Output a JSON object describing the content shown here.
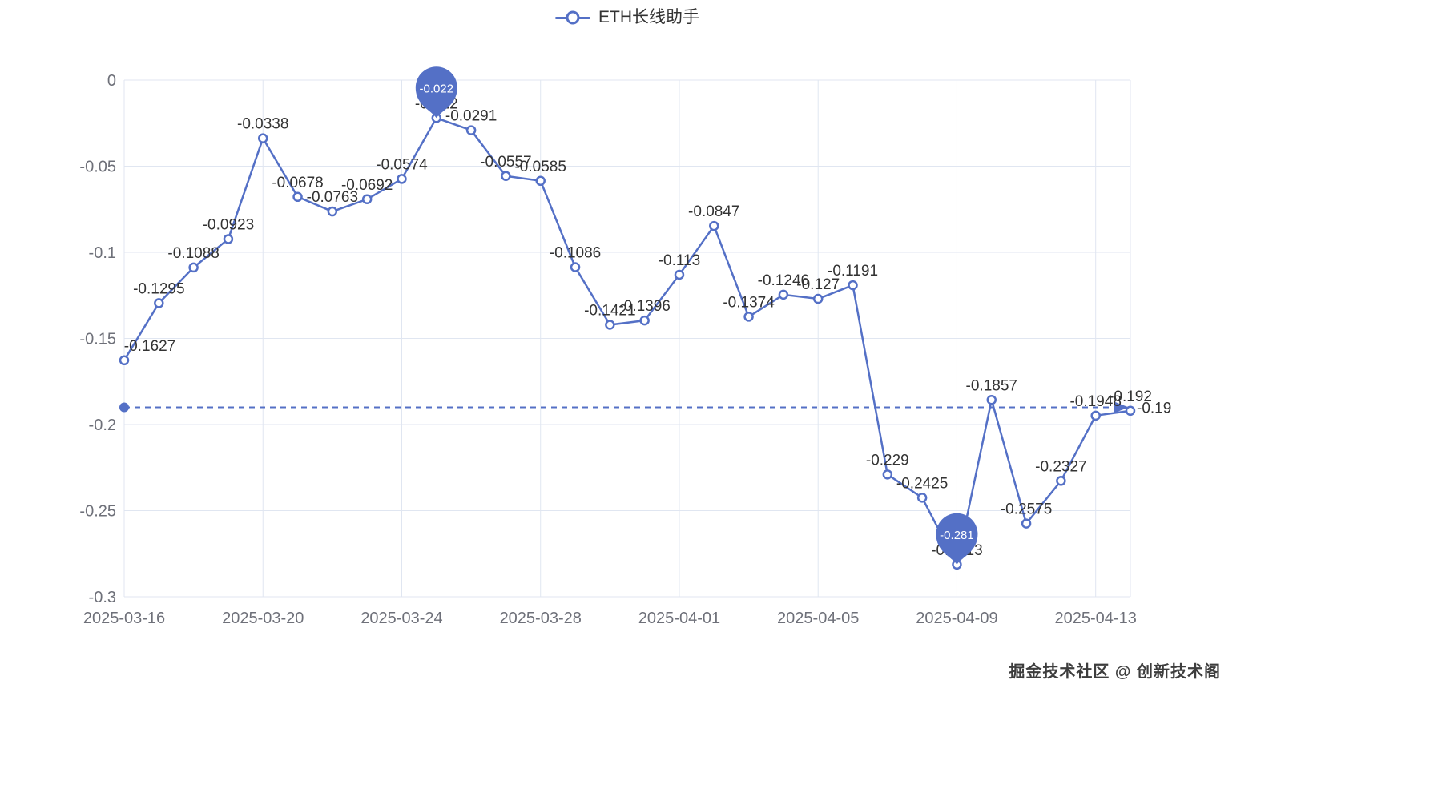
{
  "legend": {
    "label": "ETH长线助手"
  },
  "watermark": {
    "text": "掘金技术社区 @ 创新技术阁"
  },
  "colors": {
    "line": "#5470c6",
    "pin": "#5470c6",
    "pin_text": "#ffffff",
    "label": "#333333",
    "axis_label": "#6e7079",
    "grid": "#e0e6f1",
    "marker_fill": "#ffffff",
    "background": "#ffffff"
  },
  "chart_data": {
    "type": "line",
    "title": "",
    "series_name": "ETH长线助手",
    "x": [
      "2025-03-16",
      "2025-03-17",
      "2025-03-18",
      "2025-03-19",
      "2025-03-20",
      "2025-03-21",
      "2025-03-22",
      "2025-03-23",
      "2025-03-24",
      "2025-03-25",
      "2025-03-26",
      "2025-03-27",
      "2025-03-28",
      "2025-03-29",
      "2025-03-30",
      "2025-03-31",
      "2025-04-01",
      "2025-04-02",
      "2025-04-03",
      "2025-04-04",
      "2025-04-05",
      "2025-04-06",
      "2025-04-07",
      "2025-04-08",
      "2025-04-09",
      "2025-04-10",
      "2025-04-11",
      "2025-04-12",
      "2025-04-13",
      "2025-04-14"
    ],
    "values": [
      -0.1627,
      -0.1295,
      -0.1088,
      -0.0923,
      -0.0338,
      -0.0678,
      -0.0763,
      -0.0692,
      -0.0574,
      -0.022,
      -0.0291,
      -0.0557,
      -0.0585,
      -0.1086,
      -0.1421,
      -0.1396,
      -0.113,
      -0.0847,
      -0.1374,
      -0.1246,
      -0.127,
      -0.1191,
      -0.229,
      -0.2425,
      -0.2813,
      -0.1857,
      -0.2575,
      -0.2327,
      -0.1948,
      -0.192
    ],
    "labels": [
      "-0.1627",
      "-0.1295",
      "-0.1088",
      "-0.0923",
      "-0.0338",
      "-0.0678",
      "-0.0763",
      "-0.0692",
      "-0.0574",
      "-0.022",
      "-0.0291",
      "-0.0557",
      "-0.0585",
      "-0.1086",
      "-0.1421",
      "-0.1396",
      "-0.113",
      "-0.0847",
      "-0.1374",
      "-0.1246",
      "-0.127",
      "-0.1191",
      "-0.229",
      "-0.2425",
      "-0.2813",
      "-0.1857",
      "-0.2575",
      "-0.2327",
      "-0.1948",
      "-0.192"
    ],
    "x_tick_labels": [
      "2025-03-16",
      "2025-03-20",
      "2025-03-24",
      "2025-03-28",
      "2025-04-01",
      "2025-04-05",
      "2025-04-09",
      "2025-04-13"
    ],
    "x_tick_every": 4,
    "y_ticks": [
      {
        "value": 0,
        "label": "0"
      },
      {
        "value": -0.05,
        "label": "-0.05"
      },
      {
        "value": -0.1,
        "label": "-0.1"
      },
      {
        "value": -0.15,
        "label": "-0.15"
      },
      {
        "value": -0.2,
        "label": "-0.2"
      },
      {
        "value": -0.25,
        "label": "-0.25"
      },
      {
        "value": -0.3,
        "label": "-0.3"
      }
    ],
    "ylim": [
      -0.3,
      0
    ],
    "xlabel": "",
    "ylabel": "",
    "grid": true,
    "legend_position": "top-center",
    "mark_points": [
      {
        "type": "max",
        "index": 9,
        "label": "-0.022"
      },
      {
        "type": "min",
        "index": 24,
        "label": "-0.281"
      }
    ],
    "mark_line": {
      "value": -0.19,
      "label": "-0.19",
      "style": "dashed"
    }
  }
}
